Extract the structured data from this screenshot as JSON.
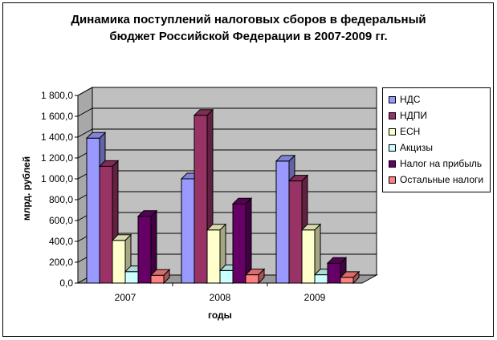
{
  "chart_data": {
    "type": "bar",
    "title_lines": [
      "Динамика поступлений налоговых сборов в федеральный",
      "бюджет Российской Федерации в 2007-2009 гг."
    ],
    "xlabel": "годы",
    "ylabel": "млрд. рублей",
    "ylim": [
      0,
      1800
    ],
    "yticks": [
      "0,0",
      "200,0",
      "400,0",
      "600,0",
      "800,0",
      "1 000,0",
      "1 200,0",
      "1 400,0",
      "1 600,0",
      "1 800,0"
    ],
    "categories": [
      "2007",
      "2008",
      "2009"
    ],
    "three_d": true,
    "grid": true,
    "legend_position": "right",
    "series": [
      {
        "name": "НДС",
        "color": "#9999FF",
        "values": [
          1390,
          1000,
          1170
        ]
      },
      {
        "name": "НДПИ",
        "color": "#993366",
        "values": [
          1120,
          1610,
          980
        ]
      },
      {
        "name": "ЕСН",
        "color": "#FFFFCC",
        "values": [
          410,
          510,
          510
        ]
      },
      {
        "name": "Акцизы",
        "color": "#CCFFFF",
        "values": [
          110,
          120,
          80
        ]
      },
      {
        "name": "Налог на прибыль",
        "color": "#660066",
        "values": [
          640,
          760,
          190
        ]
      },
      {
        "name": "Остальные налоги",
        "color": "#FF8080",
        "values": [
          75,
          80,
          55
        ]
      }
    ]
  }
}
